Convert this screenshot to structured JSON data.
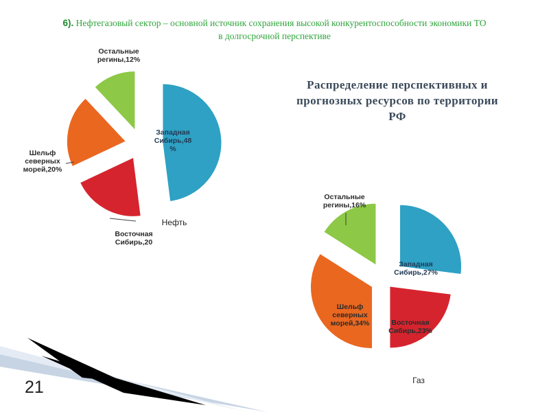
{
  "header": {
    "number": "6).",
    "text_line1": "Нефтегазовый сектор – основной источник сохранения высокой конкурентоспособности экономики ТО",
    "text_line2": "в долгосрочной перспективе"
  },
  "subtitle": {
    "line1": "Распределение перспективных и",
    "line2": "прогнозных ресурсов по территории",
    "line3": "РФ"
  },
  "slide_number": "21",
  "colors": {
    "blue": "#2ea1c4",
    "red": "#d6242e",
    "orange": "#ea6720",
    "green": "#8dc846",
    "heading": "#2ea43a"
  },
  "chart_data": [
    {
      "type": "pie",
      "title": "Нефть",
      "slices": [
        {
          "label_lines": [
            "Западная",
            "Сибирь,48",
            "%"
          ],
          "value": 48,
          "color": "#2ea1c4"
        },
        {
          "label_lines": [
            "Восточная",
            "Сибирь,20"
          ],
          "value": 20,
          "color": "#d6242e"
        },
        {
          "label_lines": [
            "Шельф",
            "северных",
            "морей,20%"
          ],
          "value": 20,
          "color": "#ea6720"
        },
        {
          "label_lines": [
            "Остальные",
            "регины,12%"
          ],
          "value": 12,
          "color": "#8dc846"
        }
      ]
    },
    {
      "type": "pie",
      "title": "Газ",
      "slices": [
        {
          "label_lines": [
            "Западная",
            "Сибирь,27%"
          ],
          "value": 27,
          "color": "#2ea1c4"
        },
        {
          "label_lines": [
            "Восточная",
            "Сибирь,23%"
          ],
          "value": 23,
          "color": "#d6242e"
        },
        {
          "label_lines": [
            "Шельф",
            "северных",
            "морей,34%"
          ],
          "value": 34,
          "color": "#ea6720"
        },
        {
          "label_lines": [
            "Остальные",
            "регины,16%"
          ],
          "value": 16,
          "color": "#8dc846"
        }
      ]
    }
  ]
}
